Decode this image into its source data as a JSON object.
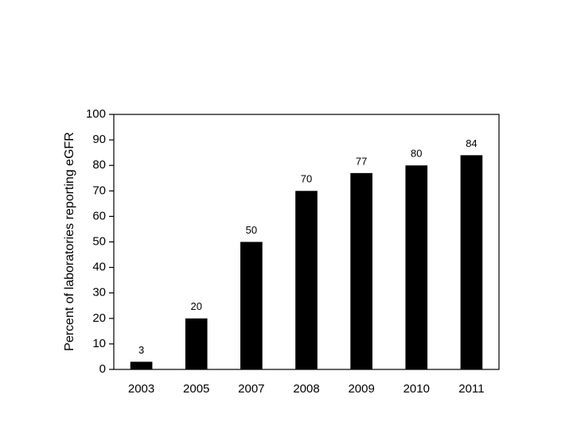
{
  "chart_data": {
    "type": "bar",
    "y_label": "Percent of laboratories reporting eGFR",
    "categories": [
      "2003",
      "2005",
      "2007",
      "2008",
      "2009",
      "2010",
      "2011"
    ],
    "values": [
      3,
      20,
      50,
      70,
      77,
      80,
      84
    ],
    "color": "#000000",
    "ylim": [
      0,
      100
    ],
    "yticks": [
      0,
      10,
      20,
      30,
      40,
      50,
      60,
      70,
      80,
      90,
      100
    ],
    "grid": false
  }
}
